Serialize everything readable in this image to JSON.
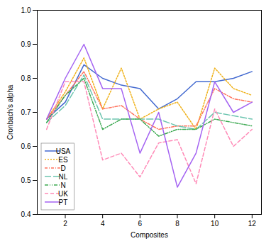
{
  "chart_data": {
    "type": "line",
    "x": [
      1,
      2,
      3,
      4,
      5,
      6,
      7,
      8,
      9,
      10,
      11,
      12
    ],
    "series": [
      {
        "name": "USA",
        "line_style": "solid",
        "values": [
          0.68,
          0.73,
          0.84,
          0.8,
          0.78,
          0.77,
          0.71,
          0.74,
          0.79,
          0.79,
          0.8,
          0.82
        ]
      },
      {
        "name": "ES",
        "line_style": "dotted",
        "values": [
          0.68,
          0.76,
          0.86,
          0.71,
          0.83,
          0.68,
          0.71,
          0.73,
          0.65,
          0.83,
          0.77,
          0.75
        ]
      },
      {
        "name": "D",
        "line_style": "dashdot",
        "values": [
          0.68,
          0.75,
          0.82,
          0.71,
          0.72,
          0.68,
          0.65,
          0.66,
          0.66,
          0.77,
          0.74,
          0.73
        ]
      },
      {
        "name": "NL",
        "line_style": "longdash",
        "values": [
          0.67,
          0.72,
          0.81,
          0.68,
          0.68,
          0.68,
          0.68,
          0.66,
          0.65,
          0.7,
          0.69,
          0.68
        ]
      },
      {
        "name": "N",
        "line_style": "dashdotdot",
        "values": [
          0.67,
          0.75,
          0.8,
          0.65,
          0.68,
          0.68,
          0.63,
          0.65,
          0.65,
          0.68,
          0.67,
          0.66
        ]
      },
      {
        "name": "UK",
        "line_style": "dashed",
        "values": [
          0.65,
          0.79,
          0.79,
          0.56,
          0.58,
          0.51,
          0.61,
          0.62,
          0.49,
          0.71,
          0.6,
          0.65
        ]
      },
      {
        "name": "PT",
        "line_style": "solid",
        "values": [
          0.68,
          0.8,
          0.9,
          0.77,
          0.77,
          0.58,
          0.7,
          0.48,
          0.58,
          0.79,
          0.7,
          0.73
        ]
      }
    ],
    "xlabel": "Composites",
    "ylabel": "Cronbach's alpha",
    "xlim": [
      0.5,
      12.5
    ],
    "ylim": [
      0.4,
      1.0
    ],
    "xticks": [
      2,
      4,
      6,
      8,
      10,
      12
    ],
    "yticks": [
      0.4,
      0.5,
      0.6,
      0.7,
      0.8,
      0.9,
      {
        "value": 1.0,
        "label": "1.0"
      }
    ],
    "grid": false,
    "legend": "lower left"
  }
}
